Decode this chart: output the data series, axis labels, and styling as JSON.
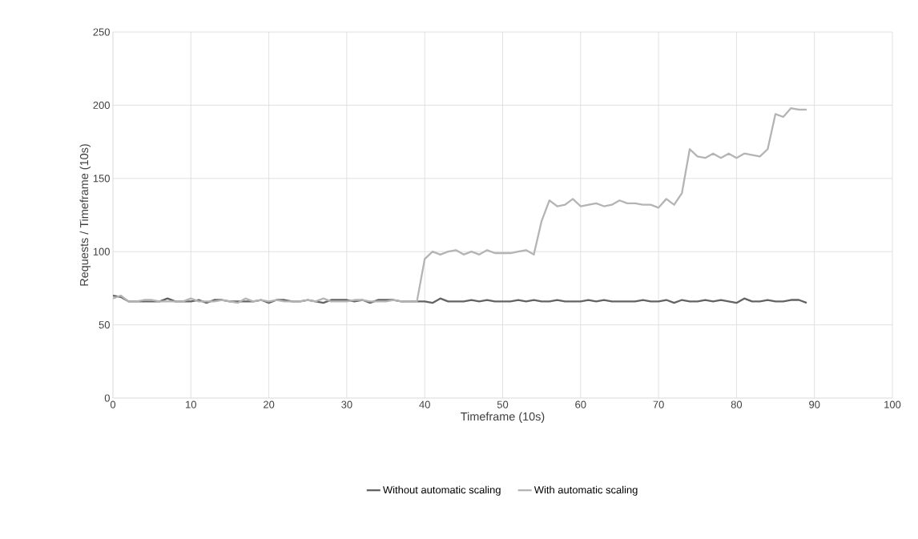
{
  "chart_data": {
    "type": "line",
    "xlabel": "Timeframe (10s)",
    "ylabel": "Requests / Timeframe (10s)",
    "x": [
      0,
      1,
      2,
      3,
      4,
      5,
      6,
      7,
      8,
      9,
      10,
      11,
      12,
      13,
      14,
      15,
      16,
      17,
      18,
      19,
      20,
      21,
      22,
      23,
      24,
      25,
      26,
      27,
      28,
      29,
      30,
      31,
      32,
      33,
      34,
      35,
      36,
      37,
      38,
      39,
      40,
      41,
      42,
      43,
      44,
      45,
      46,
      47,
      48,
      49,
      50,
      51,
      52,
      53,
      54,
      55,
      56,
      57,
      58,
      59,
      60,
      61,
      62,
      63,
      64,
      65,
      66,
      67,
      68,
      69,
      70,
      71,
      72,
      73,
      74,
      75,
      76,
      77,
      78,
      79,
      80,
      81,
      82,
      83,
      84,
      85,
      86,
      87,
      88,
      89
    ],
    "series": [
      {
        "name": "Without automatic scaling",
        "color": "#636363",
        "values": [
          70,
          69,
          66,
          66,
          66,
          66,
          66,
          68,
          66,
          66,
          66,
          67,
          65,
          67,
          67,
          66,
          66,
          66,
          66,
          67,
          65,
          67,
          67,
          66,
          66,
          67,
          66,
          65,
          67,
          67,
          67,
          66,
          67,
          65,
          67,
          67,
          67,
          66,
          66,
          66,
          66,
          65,
          68,
          66,
          66,
          66,
          67,
          66,
          67,
          66,
          66,
          66,
          67,
          66,
          67,
          66,
          66,
          67,
          66,
          66,
          66,
          67,
          66,
          67,
          66,
          66,
          66,
          66,
          67,
          66,
          66,
          67,
          65,
          67,
          66,
          66,
          67,
          66,
          67,
          66,
          65,
          68,
          66,
          66,
          67,
          66,
          66,
          67,
          67,
          65
        ]
      },
      {
        "name": "With automatic scaling",
        "color": "#b4b4b4",
        "values": [
          68,
          70,
          66,
          66,
          67,
          67,
          66,
          66,
          66,
          66,
          68,
          66,
          66,
          66,
          67,
          66,
          65,
          68,
          66,
          67,
          66,
          67,
          66,
          66,
          66,
          67,
          66,
          68,
          66,
          66,
          66,
          67,
          67,
          66,
          66,
          66,
          67,
          66,
          66,
          66,
          95,
          100,
          98,
          100,
          101,
          98,
          100,
          98,
          101,
          99,
          99,
          99,
          100,
          101,
          98,
          121,
          135,
          131,
          132,
          136,
          131,
          132,
          133,
          131,
          132,
          135,
          133,
          133,
          132,
          132,
          130,
          136,
          132,
          140,
          170,
          165,
          164,
          167,
          164,
          167,
          164,
          167,
          166,
          165,
          170,
          194,
          192,
          198,
          197,
          197
        ]
      }
    ],
    "xlim": [
      0,
      100
    ],
    "xticks": [
      0,
      10,
      20,
      30,
      40,
      50,
      60,
      70,
      80,
      90,
      100
    ],
    "ylim": [
      0,
      250
    ],
    "yticks": [
      0,
      50,
      100,
      150,
      200,
      250
    ],
    "grid": true,
    "legend": "bottom",
    "marker": "none",
    "line_style": "solid"
  }
}
